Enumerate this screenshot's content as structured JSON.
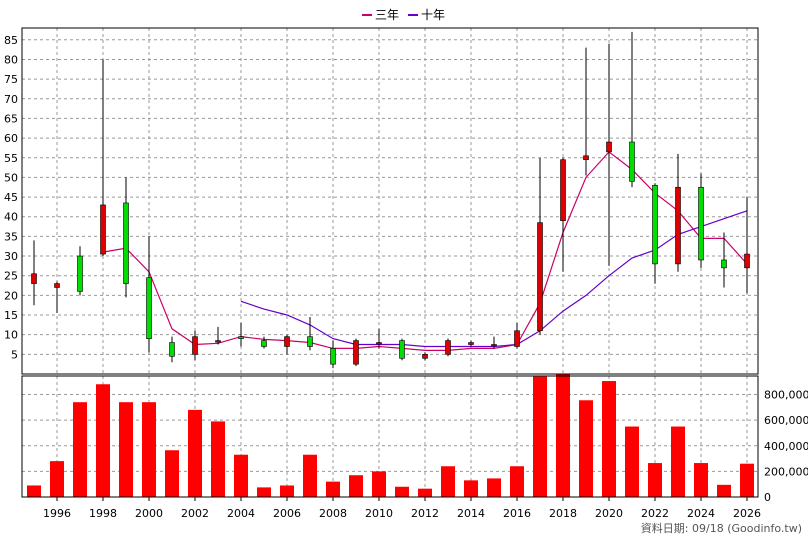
{
  "chart_data": {
    "type": "candlestick-with-volume",
    "legend": [
      {
        "label": "三年",
        "color": "#cc0066"
      },
      {
        "label": "十年",
        "color": "#6600cc"
      }
    ],
    "source_note": "資料日期: 09/18 (Goodinfo.tw)",
    "x_ticks": [
      "1996",
      "1998",
      "2000",
      "2002",
      "2004",
      "2006",
      "2008",
      "2010",
      "2012",
      "2014",
      "2016",
      "2018",
      "2020",
      "2022",
      "2024",
      "2026"
    ],
    "price_axis": {
      "ylim": [
        0,
        88
      ],
      "ticks": [
        5,
        10,
        15,
        20,
        25,
        30,
        35,
        40,
        45,
        50,
        55,
        60,
        65,
        70,
        75,
        80,
        85
      ]
    },
    "volume_axis": {
      "ylim": [
        0,
        960000
      ],
      "ticks": [
        0,
        200000,
        400000,
        600000,
        800000
      ],
      "tick_labels": [
        "0",
        "200,000",
        "400,000",
        "600,000",
        "800,000"
      ]
    },
    "years": [
      1995,
      1996,
      1997,
      1998,
      1999,
      2000,
      2001,
      2002,
      2003,
      2004,
      2005,
      2006,
      2007,
      2008,
      2009,
      2010,
      2011,
      2012,
      2013,
      2014,
      2015,
      2016,
      2017,
      2018,
      2019,
      2020,
      2021,
      2022,
      2023,
      2024,
      2025,
      2026
    ],
    "candles": [
      {
        "open": 23,
        "close": 25.5,
        "high": 34,
        "low": 17.5
      },
      {
        "open": 22,
        "close": 23,
        "high": 23.5,
        "low": 15.5
      },
      {
        "open": 30,
        "close": 21,
        "high": 32.5,
        "low": 20
      },
      {
        "open": 30.5,
        "close": 43,
        "high": 80,
        "low": 30
      },
      {
        "open": 43.5,
        "close": 23,
        "high": 50,
        "low": 19.5
      },
      {
        "open": 24.5,
        "close": 9,
        "high": 35,
        "low": 5.5
      },
      {
        "open": 8,
        "close": 4.5,
        "high": 9.5,
        "low": 3
      },
      {
        "open": 5,
        "close": 9.5,
        "high": 11,
        "low": 3.5
      },
      {
        "open": 8.5,
        "close": 8.5,
        "high": 12,
        "low": 7.5
      },
      {
        "open": 9.5,
        "close": 9,
        "high": 13,
        "low": 7
      },
      {
        "open": 8.5,
        "close": 7,
        "high": 9.5,
        "low": 6.5
      },
      {
        "open": 7,
        "close": 9.5,
        "high": 10,
        "low": 5
      },
      {
        "open": 9.5,
        "close": 7,
        "high": 14.5,
        "low": 6
      },
      {
        "open": 6.5,
        "close": 2.5,
        "high": 8.5,
        "low": 1.5
      },
      {
        "open": 2.5,
        "close": 8.5,
        "high": 9,
        "low": 2
      },
      {
        "open": 8,
        "close": 8,
        "high": 11.5,
        "low": 6.5
      },
      {
        "open": 8.5,
        "close": 4,
        "high": 9,
        "low": 3.5
      },
      {
        "open": 4,
        "close": 5,
        "high": 5.5,
        "low": 3.5
      },
      {
        "open": 5,
        "close": 8.5,
        "high": 9,
        "low": 4.5
      },
      {
        "open": 7.5,
        "close": 8,
        "high": 8.5,
        "low": 7
      },
      {
        "open": 7.5,
        "close": 7.5,
        "high": 9.5,
        "low": 6.5
      },
      {
        "open": 7,
        "close": 11,
        "high": 13,
        "low": 6.5
      },
      {
        "open": 11,
        "close": 38.5,
        "high": 55,
        "low": 10
      },
      {
        "open": 39,
        "close": 54.5,
        "high": 55,
        "low": 26
      },
      {
        "open": 54.5,
        "close": 55.5,
        "high": 83,
        "low": 50.5
      },
      {
        "open": 56.5,
        "close": 59,
        "high": 84,
        "low": 27.5
      },
      {
        "open": 59,
        "close": 49,
        "high": 87,
        "low": 47.5
      },
      {
        "open": 48,
        "close": 28,
        "high": 48.5,
        "low": 23
      },
      {
        "open": 28,
        "close": 47.5,
        "high": 56,
        "low": 26
      },
      {
        "open": 47.5,
        "close": 29,
        "high": 51,
        "low": 27
      },
      {
        "open": 29,
        "close": 27,
        "high": 36,
        "low": 22
      },
      {
        "open": 27,
        "close": 30.5,
        "high": 45,
        "low": 20.5
      }
    ],
    "series": [
      {
        "name": "三年",
        "values": [
          null,
          null,
          null,
          31,
          32,
          26,
          11.5,
          7.5,
          7.8,
          9.5,
          8.8,
          8.5,
          8,
          6.5,
          6.5,
          7,
          6.5,
          6,
          6,
          6.5,
          6.5,
          7.5,
          18,
          36,
          50,
          56.5,
          52,
          46,
          41.5,
          34.5,
          34.5,
          28
        ]
      },
      {
        "name": "十年",
        "values": [
          null,
          null,
          null,
          null,
          null,
          null,
          null,
          null,
          null,
          18.5,
          16.5,
          15,
          12.5,
          9,
          7.5,
          7.5,
          7.5,
          7,
          7,
          7,
          7,
          7.5,
          11,
          16,
          20,
          25,
          29.5,
          31.5,
          35.5,
          37.5,
          39.5,
          41.5
        ]
      }
    ],
    "volume": [
      90000,
      280000,
      740000,
      880000,
      740000,
      740000,
      365000,
      680000,
      590000,
      330000,
      75000,
      90000,
      330000,
      120000,
      170000,
      200000,
      80000,
      65000,
      240000,
      130000,
      145000,
      240000,
      940000,
      960000,
      755000,
      905000,
      550000,
      265000,
      550000,
      265000,
      95000,
      260000
    ],
    "colors": {
      "up": "#dd0000",
      "down": "#00dd00",
      "volume": "#ff0000",
      "grid": "#999999"
    }
  }
}
